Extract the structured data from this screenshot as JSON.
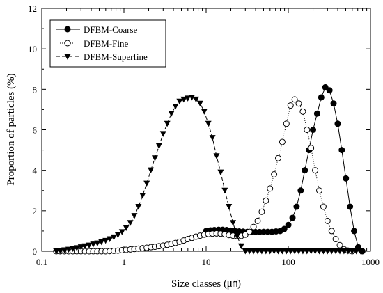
{
  "chart_data": {
    "type": "scatter",
    "xlabel": "Size classes (㎛)",
    "ylabel": "Proportion of particles (%)",
    "xscale": "log",
    "xlim": [
      0.1,
      1000
    ],
    "ylim": [
      0,
      12
    ],
    "x_ticks": [
      "0.1",
      "1",
      "10",
      "100",
      "1000"
    ],
    "y_ticks": [
      "0",
      "2",
      "4",
      "6",
      "8",
      "10",
      "12"
    ],
    "grid": false,
    "legend_position": "top-left",
    "series": [
      {
        "name": "DFBM-Coarse",
        "marker": "filled-circle",
        "line": "solid",
        "points": [
          [
            10,
            1.0
          ],
          [
            11.3,
            1.03
          ],
          [
            12.6,
            1.05
          ],
          [
            14.2,
            1.06
          ],
          [
            15.9,
            1.06
          ],
          [
            17.8,
            1.05
          ],
          [
            20.0,
            1.02
          ],
          [
            22.4,
            1.0
          ],
          [
            25.2,
            0.98
          ],
          [
            28.2,
            0.97
          ],
          [
            31.7,
            0.96
          ],
          [
            35.6,
            0.95
          ],
          [
            39.9,
            0.95
          ],
          [
            44.8,
            0.95
          ],
          [
            50.2,
            0.96
          ],
          [
            56.4,
            0.96
          ],
          [
            63.2,
            0.96
          ],
          [
            71.0,
            0.98
          ],
          [
            79.6,
            1.0
          ],
          [
            89.3,
            1.1
          ],
          [
            100.2,
            1.3
          ],
          [
            112.5,
            1.65
          ],
          [
            126.2,
            2.2
          ],
          [
            141.6,
            3.0
          ],
          [
            158.9,
            4.0
          ],
          [
            178.3,
            5.0
          ],
          [
            200.0,
            6.0
          ],
          [
            224.4,
            6.8
          ],
          [
            251.8,
            7.6
          ],
          [
            282.5,
            8.1
          ],
          [
            317,
            7.95
          ],
          [
            355.7,
            7.3
          ],
          [
            399.1,
            6.3
          ],
          [
            447.7,
            5.0
          ],
          [
            502.4,
            3.6
          ],
          [
            563.7,
            2.2
          ],
          [
            632.5,
            1.0
          ],
          [
            709.6,
            0.2
          ],
          [
            796.2,
            0.0
          ]
        ]
      },
      {
        "name": "DFBM-Fine",
        "marker": "open-circle",
        "line": "dotted",
        "points": [
          [
            0.15,
            0.0
          ],
          [
            0.168,
            0.0
          ],
          [
            0.189,
            0.0
          ],
          [
            0.212,
            0.0
          ],
          [
            0.238,
            0.0
          ],
          [
            0.267,
            0.0
          ],
          [
            0.3,
            0.0
          ],
          [
            0.336,
            0.0
          ],
          [
            0.377,
            0.0
          ],
          [
            0.423,
            0.0
          ],
          [
            0.475,
            0.0
          ],
          [
            0.533,
            0.0
          ],
          [
            0.598,
            0.0
          ],
          [
            0.671,
            0.01
          ],
          [
            0.753,
            0.02
          ],
          [
            0.845,
            0.03
          ],
          [
            0.948,
            0.05
          ],
          [
            1.064,
            0.07
          ],
          [
            1.194,
            0.09
          ],
          [
            1.339,
            0.11
          ],
          [
            1.503,
            0.13
          ],
          [
            1.686,
            0.15
          ],
          [
            1.892,
            0.17
          ],
          [
            2.123,
            0.2
          ],
          [
            2.382,
            0.22
          ],
          [
            2.672,
            0.25
          ],
          [
            2.998,
            0.28
          ],
          [
            3.364,
            0.32
          ],
          [
            3.775,
            0.36
          ],
          [
            4.236,
            0.41
          ],
          [
            4.753,
            0.47
          ],
          [
            5.333,
            0.53
          ],
          [
            5.984,
            0.6
          ],
          [
            6.714,
            0.66
          ],
          [
            7.534,
            0.72
          ],
          [
            8.453,
            0.77
          ],
          [
            9.485,
            0.82
          ],
          [
            10.64,
            0.85
          ],
          [
            11.94,
            0.87
          ],
          [
            13.4,
            0.88
          ],
          [
            15.03,
            0.87
          ],
          [
            16.87,
            0.84
          ],
          [
            18.93,
            0.8
          ],
          [
            21.24,
            0.77
          ],
          [
            23.83,
            0.75
          ],
          [
            26.74,
            0.76
          ],
          [
            30.0,
            0.82
          ],
          [
            33.66,
            0.96
          ],
          [
            37.77,
            1.2
          ],
          [
            42.38,
            1.5
          ],
          [
            47.55,
            1.95
          ],
          [
            53.36,
            2.5
          ],
          [
            59.87,
            3.1
          ],
          [
            67.17,
            3.8
          ],
          [
            75.37,
            4.6
          ],
          [
            84.57,
            5.4
          ],
          [
            94.89,
            6.3
          ],
          [
            106.5,
            7.2
          ],
          [
            119.5,
            7.5
          ],
          [
            134.0,
            7.3
          ],
          [
            150.4,
            6.9
          ],
          [
            168.7,
            6.0
          ],
          [
            189.3,
            5.1
          ],
          [
            212.4,
            4.0
          ],
          [
            238.4,
            3.0
          ],
          [
            267.5,
            2.2
          ],
          [
            300.1,
            1.5
          ],
          [
            336.7,
            1.0
          ],
          [
            377.8,
            0.6
          ],
          [
            423.9,
            0.3
          ],
          [
            475.6,
            0.1
          ],
          [
            533.7,
            0.03
          ],
          [
            598.8,
            0.0
          ]
        ]
      },
      {
        "name": "DFBM-Superfine",
        "marker": "filled-triangle-down",
        "line": "dashed",
        "points": [
          [
            0.15,
            0.0
          ],
          [
            0.168,
            0.02
          ],
          [
            0.189,
            0.05
          ],
          [
            0.212,
            0.08
          ],
          [
            0.238,
            0.12
          ],
          [
            0.267,
            0.16
          ],
          [
            0.3,
            0.2
          ],
          [
            0.336,
            0.25
          ],
          [
            0.377,
            0.29
          ],
          [
            0.423,
            0.34
          ],
          [
            0.475,
            0.39
          ],
          [
            0.533,
            0.45
          ],
          [
            0.598,
            0.52
          ],
          [
            0.671,
            0.6
          ],
          [
            0.753,
            0.69
          ],
          [
            0.845,
            0.8
          ],
          [
            0.948,
            0.95
          ],
          [
            1.064,
            1.15
          ],
          [
            1.194,
            1.4
          ],
          [
            1.339,
            1.75
          ],
          [
            1.503,
            2.2
          ],
          [
            1.686,
            2.75
          ],
          [
            1.892,
            3.35
          ],
          [
            2.123,
            4.0
          ],
          [
            2.382,
            4.6
          ],
          [
            2.672,
            5.2
          ],
          [
            2.998,
            5.8
          ],
          [
            3.364,
            6.3
          ],
          [
            3.775,
            6.8
          ],
          [
            4.236,
            7.15
          ],
          [
            4.753,
            7.4
          ],
          [
            5.333,
            7.5
          ],
          [
            5.984,
            7.55
          ],
          [
            6.714,
            7.6
          ],
          [
            7.534,
            7.5
          ],
          [
            8.453,
            7.3
          ],
          [
            9.485,
            6.9
          ],
          [
            10.64,
            6.3
          ],
          [
            11.94,
            5.6
          ],
          [
            13.4,
            4.7
          ],
          [
            15.03,
            3.9
          ],
          [
            16.87,
            3.0
          ],
          [
            18.93,
            2.2
          ],
          [
            21.24,
            1.4
          ],
          [
            23.83,
            0.75
          ],
          [
            26.74,
            0.25
          ],
          [
            30.0,
            0.0
          ],
          [
            33.66,
            0.0
          ],
          [
            37.77,
            0.0
          ],
          [
            42.38,
            0.0
          ],
          [
            47.55,
            0.0
          ],
          [
            53.36,
            0.0
          ],
          [
            59.87,
            0.0
          ],
          [
            67.17,
            0.0
          ],
          [
            75.37,
            0.0
          ],
          [
            84.57,
            0.0
          ],
          [
            94.89,
            0.0
          ],
          [
            106.5,
            0.0
          ],
          [
            119.5,
            0.0
          ],
          [
            134.0,
            0.0
          ],
          [
            150.4,
            0.0
          ],
          [
            168.7,
            0.0
          ],
          [
            189.3,
            0.0
          ],
          [
            212.4,
            0.0
          ],
          [
            238.4,
            0.0
          ],
          [
            267.5,
            0.0
          ],
          [
            300.1,
            0.0
          ],
          [
            336.7,
            0.0
          ],
          [
            377.8,
            0.0
          ],
          [
            423.9,
            0.0
          ],
          [
            475.6,
            0.0
          ],
          [
            533.7,
            0.0
          ],
          [
            598.8,
            0.0
          ],
          [
            671.9,
            0.0
          ],
          [
            753.9,
            0.0
          ]
        ]
      }
    ]
  }
}
